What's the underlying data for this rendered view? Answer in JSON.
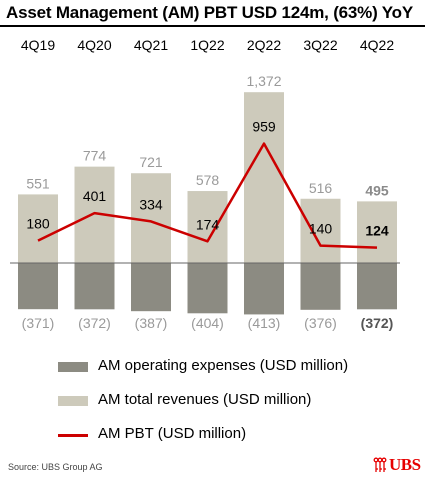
{
  "title": "Asset Management (AM) PBT USD 124m, (63%) YoY",
  "colors": {
    "expenses": "#8c8b82",
    "revenues": "#cdcabb",
    "pbt": "#cc0000",
    "muted_label": "#9a9a9a",
    "highlight_label": "#8a8a8a"
  },
  "chart_data": {
    "type": "bar",
    "categories": [
      "4Q19",
      "4Q20",
      "4Q21",
      "1Q22",
      "2Q22",
      "3Q22",
      "4Q22"
    ],
    "series": [
      {
        "name": "AM operating expenses (USD million)",
        "type": "bar",
        "values": [
          -371,
          -372,
          -387,
          -404,
          -413,
          -376,
          -372
        ],
        "labels": [
          "(371)",
          "(372)",
          "(387)",
          "(404)",
          "(413)",
          "(376)",
          "(372)"
        ]
      },
      {
        "name": "AM total revenues (USD million)",
        "type": "bar",
        "values": [
          551,
          774,
          721,
          578,
          1372,
          516,
          495
        ],
        "labels": [
          "551",
          "774",
          "721",
          "578",
          "1,372",
          "516",
          "495"
        ]
      },
      {
        "name": "AM PBT (USD million)",
        "type": "line",
        "values": [
          180,
          401,
          334,
          174,
          959,
          140,
          124
        ],
        "labels": [
          "180",
          "401",
          "334",
          "174",
          "959",
          "140",
          "124"
        ]
      }
    ],
    "highlight_index": 6,
    "axis_lines": false
  },
  "legend": {
    "expenses": "AM operating expenses (USD million)",
    "revenues": "AM total revenues (USD million)",
    "pbt": "AM PBT (USD million)"
  },
  "source": "Source: UBS Group AG",
  "logo_text": "UBS"
}
